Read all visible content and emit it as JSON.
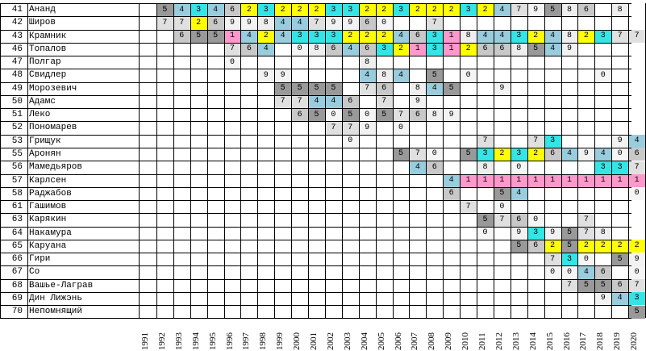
{
  "colors": {
    "1": "#ff99cc",
    "2": "#ffff00",
    "3": "#33e5e5",
    "4": "#99ccdd",
    "5": "#999999",
    "6": "#c8c8c8",
    "7": "#e0e0e0",
    "8": "#eeeeee",
    "9": "#f2f2f2",
    "0": "#f5f5f5"
  },
  "years": [
    "1991",
    "1992",
    "1993",
    "1994",
    "1995",
    "1996",
    "1997",
    "1998",
    "1999",
    "2000",
    "2001",
    "2002",
    "2003",
    "2004",
    "2005",
    "2006",
    "2007",
    "2008",
    "2009",
    "2010",
    "2011",
    "2012",
    "2013",
    "2014",
    "2015",
    "2016",
    "2017",
    "2018",
    "2019",
    "2020"
  ],
  "rows": [
    {
      "num": "41",
      "name": "Ананд",
      "cells": [
        "",
        "5",
        "4",
        "3",
        "4",
        "6",
        "2",
        "3",
        "2",
        "2",
        "2",
        "3",
        "3",
        "2",
        "2",
        "3",
        "2",
        "2",
        "2",
        "3",
        "2",
        "4",
        "7",
        "9",
        "5",
        "8",
        "6",
        "",
        "8",
        ""
      ]
    },
    {
      "num": "42",
      "name": "Широв",
      "cells": [
        "",
        "7",
        "7",
        "2",
        "6",
        "9",
        "9",
        "8",
        "4",
        "4",
        "7",
        "9",
        "9",
        "6",
        "0",
        "",
        "",
        "7",
        "",
        "",
        "",
        "",
        "",
        "",
        "",
        "",
        "",
        "",
        "",
        ""
      ]
    },
    {
      "num": "43",
      "name": "Крамник",
      "cells": [
        "",
        "",
        "6",
        "5",
        "5",
        "1",
        "4",
        "2",
        "4",
        "3",
        "3",
        "3",
        "2",
        "2",
        "2",
        "4",
        "6",
        "3",
        "1",
        "8",
        "4",
        "4",
        "3",
        "2",
        "4",
        "8",
        "2",
        "3",
        "7",
        "7"
      ]
    },
    {
      "num": "46",
      "name": "Топалов",
      "cells": [
        "",
        "",
        "",
        "",
        "",
        "7",
        "6",
        "4",
        "",
        "0",
        "8",
        "6",
        "4",
        "6",
        "3",
        "2",
        "1",
        "3",
        "1",
        "2",
        "6",
        "6",
        "8",
        "5",
        "4",
        "9",
        "",
        "",
        "",
        ""
      ]
    },
    {
      "num": "47",
      "name": "Полгар",
      "cells": [
        "",
        "",
        "",
        "",
        "",
        "0",
        "",
        "",
        "",
        "",
        "",
        "",
        "",
        "8",
        "",
        "",
        "",
        "",
        "",
        "",
        "",
        "",
        "",
        "",
        "",
        "",
        "",
        "",
        "",
        ""
      ]
    },
    {
      "num": "48",
      "name": "Свидлер",
      "cells": [
        "",
        "",
        "",
        "",
        "",
        "",
        "",
        "9",
        "9",
        "",
        "",
        "",
        "",
        "4",
        "8",
        "4",
        "",
        "5",
        "",
        "0",
        "",
        "",
        "",
        "",
        "",
        "",
        "",
        "0",
        "",
        ""
      ]
    },
    {
      "num": "49",
      "name": "Морозевич",
      "cells": [
        "",
        "",
        "",
        "",
        "",
        "",
        "",
        "",
        "5",
        "5",
        "5",
        "5",
        "",
        "7",
        "6",
        "",
        "8",
        "4",
        "5",
        "",
        "",
        "9",
        "",
        "",
        "",
        "",
        "",
        "",
        "",
        ""
      ]
    },
    {
      "num": "50",
      "name": "Адамс",
      "cells": [
        "",
        "",
        "",
        "",
        "",
        "",
        "",
        "",
        "7",
        "7",
        "4",
        "4",
        "6",
        "",
        "7",
        "",
        "9",
        "",
        "",
        "",
        "",
        "",
        "",
        "",
        "",
        "",
        "",
        "",
        "",
        ""
      ]
    },
    {
      "num": "51",
      "name": "Леко",
      "cells": [
        "",
        "",
        "",
        "",
        "",
        "",
        "",
        "",
        "",
        "6",
        "5",
        "0",
        "5",
        "0",
        "5",
        "7",
        "6",
        "8",
        "9",
        "",
        "",
        "",
        "",
        "",
        "",
        "",
        "",
        "",
        "",
        ""
      ]
    },
    {
      "num": "52",
      "name": "Пономарев",
      "cells": [
        "",
        "",
        "",
        "",
        "",
        "",
        "",
        "",
        "",
        "",
        "",
        "7",
        "7",
        "9",
        "",
        "0",
        "",
        "",
        "",
        "",
        "",
        "",
        "",
        "",
        "",
        "",
        "",
        "",
        "",
        ""
      ]
    },
    {
      "num": "53",
      "name": "Грищук",
      "cells": [
        "",
        "",
        "",
        "",
        "",
        "",
        "",
        "",
        "",
        "",
        "",
        "",
        "0",
        "",
        "",
        "",
        "",
        "",
        "",
        "",
        "7",
        "",
        "",
        "7",
        "3",
        "",
        "",
        "",
        "9",
        "4"
      ]
    },
    {
      "num": "55",
      "name": "Аронян",
      "cells": [
        "",
        "",
        "",
        "",
        "",
        "",
        "",
        "",
        "",
        "",
        "",
        "",
        "",
        "",
        "",
        "5",
        "7",
        "0",
        "",
        "5",
        "3",
        "2",
        "3",
        "2",
        "6",
        "4",
        "9",
        "4",
        "0",
        "6"
      ]
    },
    {
      "num": "56",
      "name": "Мамедьяров",
      "cells": [
        "",
        "",
        "",
        "",
        "",
        "",
        "",
        "",
        "",
        "",
        "",
        "",
        "",
        "",
        "",
        "",
        "4",
        "6",
        "",
        "",
        "8",
        "",
        "0",
        "",
        "",
        "",
        "",
        "3",
        "3",
        "7"
      ]
    },
    {
      "num": "57",
      "name": "Карлсен",
      "cells": [
        "",
        "",
        "",
        "",
        "",
        "",
        "",
        "",
        "",
        "",
        "",
        "",
        "",
        "",
        "",
        "",
        "",
        "",
        "4",
        "1",
        "1",
        "1",
        "1",
        "1",
        "1",
        "1",
        "1",
        "1",
        "1",
        "1"
      ]
    },
    {
      "num": "58",
      "name": "Раджабов",
      "cells": [
        "",
        "",
        "",
        "",
        "",
        "",
        "",
        "",
        "",
        "",
        "",
        "",
        "",
        "",
        "",
        "",
        "",
        "",
        "6",
        "",
        "",
        "5",
        "4",
        "",
        "",
        "",
        "",
        "",
        "",
        "0"
      ]
    },
    {
      "num": "61",
      "name": "Гашимов",
      "cells": [
        "",
        "",
        "",
        "",
        "",
        "",
        "",
        "",
        "",
        "",
        "",
        "",
        "",
        "",
        "",
        "",
        "",
        "",
        "",
        "7",
        "",
        "0",
        "",
        "",
        "",
        "",
        "",
        "",
        "",
        ""
      ]
    },
    {
      "num": "63",
      "name": "Карякин",
      "cells": [
        "",
        "",
        "",
        "",
        "",
        "",
        "",
        "",
        "",
        "",
        "",
        "",
        "",
        "",
        "",
        "",
        "",
        "",
        "",
        "",
        "5",
        "7",
        "6",
        "0",
        "",
        "",
        "7",
        "",
        "",
        ""
      ]
    },
    {
      "num": "64",
      "name": "Накамура",
      "cells": [
        "",
        "",
        "",
        "",
        "",
        "",
        "",
        "",
        "",
        "",
        "",
        "",
        "",
        "",
        "",
        "",
        "",
        "",
        "",
        "",
        "0",
        "",
        "9",
        "3",
        "9",
        "5",
        "7",
        "8",
        "",
        ""
      ]
    },
    {
      "num": "65",
      "name": "Каруана",
      "cells": [
        "",
        "",
        "",
        "",
        "",
        "",
        "",
        "",
        "",
        "",
        "",
        "",
        "",
        "",
        "",
        "",
        "",
        "",
        "",
        "",
        "",
        "",
        "5",
        "6",
        "2",
        "5",
        "2",
        "2",
        "2",
        "2"
      ]
    },
    {
      "num": "66",
      "name": "Гири",
      "cells": [
        "",
        "",
        "",
        "",
        "",
        "",
        "",
        "",
        "",
        "",
        "",
        "",
        "",
        "",
        "",
        "",
        "",
        "",
        "",
        "",
        "",
        "",
        "",
        "",
        "7",
        "3",
        "0",
        "",
        "5",
        "9"
      ]
    },
    {
      "num": "67",
      "name": "Со",
      "cells": [
        "",
        "",
        "",
        "",
        "",
        "",
        "",
        "",
        "",
        "",
        "",
        "",
        "",
        "",
        "",
        "",
        "",
        "",
        "",
        "",
        "",
        "",
        "",
        "",
        "0",
        "0",
        "4",
        "6",
        "",
        "0"
      ]
    },
    {
      "num": "68",
      "name": "Вашье-Лаграв",
      "cells": [
        "",
        "",
        "",
        "",
        "",
        "",
        "",
        "",
        "",
        "",
        "",
        "",
        "",
        "",
        "",
        "",
        "",
        "",
        "",
        "",
        "",
        "",
        "",
        "",
        "",
        "7",
        "5",
        "5",
        "6",
        "7"
      ]
    },
    {
      "num": "69",
      "name": "Дин Лижэнь",
      "cells": [
        "",
        "",
        "",
        "",
        "",
        "",
        "",
        "",
        "",
        "",
        "",
        "",
        "",
        "",
        "",
        "",
        "",
        "",
        "",
        "",
        "",
        "",
        "",
        "",
        "",
        "",
        "",
        "9",
        "4",
        "3"
      ]
    },
    {
      "num": "70",
      "name": "Непомнящий",
      "cells": [
        "",
        "",
        "",
        "",
        "",
        "",
        "",
        "",
        "",
        "",
        "",
        "",
        "",
        "",
        "",
        "",
        "",
        "",
        "",
        "",
        "",
        "",
        "",
        "",
        "",
        "",
        "",
        "",
        "",
        "5"
      ]
    }
  ]
}
